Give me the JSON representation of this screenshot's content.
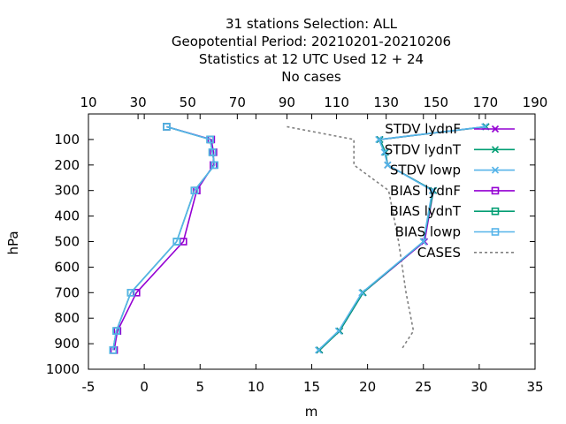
{
  "chart_data": {
    "type": "line",
    "title_lines": [
      "31 stations Selection: ALL",
      "Geopotential  Period: 20210201-20210206",
      "Statistics at 12 UTC  Used  12 + 24",
      "No cases"
    ],
    "xlabel": "m",
    "ylabel": "hPa",
    "xlim": [
      -5,
      35
    ],
    "x_ticks": [
      "-5",
      "0",
      "5",
      "10",
      "15",
      "20",
      "25",
      "30",
      "35"
    ],
    "x2lim": [
      10,
      190
    ],
    "x2_ticks": [
      "10",
      "30",
      "50",
      "70",
      "90",
      "110",
      "130",
      "150",
      "170",
      "190"
    ],
    "ylim": [
      1000,
      0
    ],
    "y_ticks": [
      "100",
      "200",
      "300",
      "400",
      "500",
      "600",
      "700",
      "800",
      "900",
      "1000"
    ],
    "grid": false,
    "legend_position": "top-right",
    "levels": [
      50,
      100,
      150,
      200,
      300,
      500,
      700,
      850,
      925
    ],
    "series": [
      {
        "name": "STDV lydnF",
        "color": "#9400d3",
        "marker": "x",
        "dash": "",
        "values": [
          30.6,
          21.1,
          21.6,
          21.8,
          25.9,
          25.1,
          19.6,
          17.5,
          15.7
        ]
      },
      {
        "name": "STDV lydnT",
        "color": "#009e73",
        "marker": "x",
        "dash": "",
        "values": [
          30.6,
          21.1,
          21.6,
          21.8,
          25.9,
          25.0,
          19.6,
          17.5,
          15.7
        ]
      },
      {
        "name": "STDV lowp",
        "color": "#56b4e9",
        "marker": "x",
        "dash": "",
        "values": [
          30.5,
          21.0,
          21.5,
          21.8,
          25.8,
          25.0,
          19.5,
          17.4,
          15.6
        ]
      },
      {
        "name": "BIAS lydnF",
        "color": "#9400d3",
        "marker": "square",
        "dash": "",
        "values": [
          2.0,
          6.0,
          6.2,
          6.2,
          4.7,
          3.5,
          -0.7,
          -2.4,
          -2.7
        ]
      },
      {
        "name": "BIAS lydnT",
        "color": "#009e73",
        "marker": "square",
        "dash": "",
        "values": [
          2.0,
          5.9,
          6.1,
          6.3,
          4.5,
          2.9,
          -1.2,
          -2.5,
          -2.8
        ]
      },
      {
        "name": "BIAS lowp",
        "color": "#56b4e9",
        "marker": "square",
        "dash": "",
        "values": [
          2.0,
          5.9,
          6.1,
          6.3,
          4.5,
          2.9,
          -1.2,
          -2.5,
          -2.8
        ]
      }
    ],
    "cases": {
      "name": "CASES",
      "color": "#808080",
      "dash": "3,3",
      "levels": [
        50,
        100,
        200,
        300,
        500,
        700,
        850,
        925
      ],
      "values": [
        90,
        117,
        117,
        131,
        135,
        138,
        141,
        136
      ]
    }
  }
}
